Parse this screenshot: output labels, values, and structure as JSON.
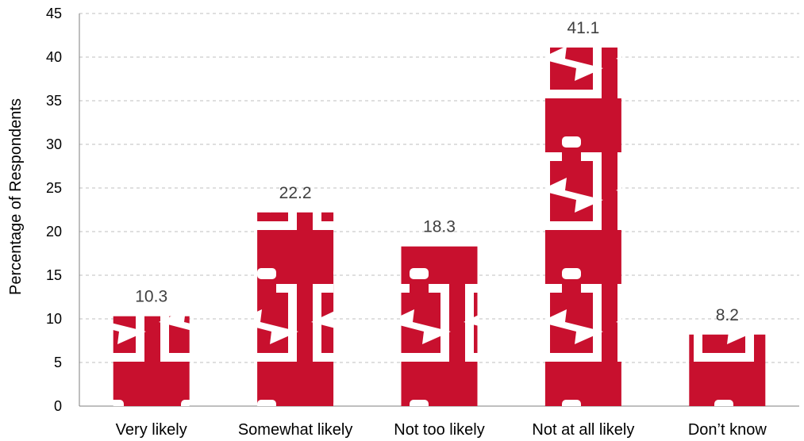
{
  "chart_data": {
    "type": "bar",
    "categories": [
      "Very likely",
      "Somewhat likely",
      "Not too likely",
      "Not at all likely",
      "Don’t know"
    ],
    "values": [
      10.3,
      22.2,
      18.3,
      41.1,
      8.2
    ],
    "value_labels": [
      "10.3",
      "22.2",
      "18.3",
      "41.1",
      "8.2"
    ],
    "title": "",
    "xlabel": "",
    "ylabel": "Percentage of Respondents",
    "ylim": [
      0,
      45
    ],
    "yticks": [
      0,
      5,
      10,
      15,
      20,
      25,
      30,
      35,
      40,
      45
    ],
    "ytick_labels": [
      "0",
      "5",
      "10",
      "15",
      "20",
      "25",
      "30",
      "35",
      "40",
      "45"
    ],
    "grid": true,
    "legend": "none",
    "bar_color": "#c8102e",
    "icon_color": "#ffffff",
    "bar_icon": "battery-charging-icon"
  }
}
